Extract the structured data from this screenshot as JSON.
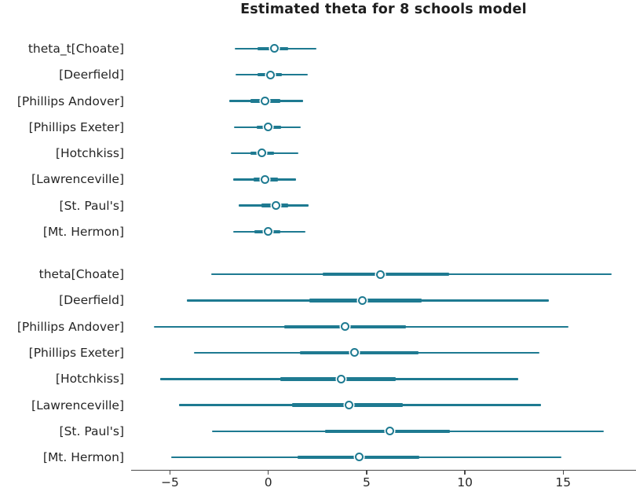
{
  "title": "Estimated theta for 8 schools model",
  "chart_data": {
    "type": "forest",
    "title": "Estimated theta for 8 schools model",
    "xlabel": "",
    "ylabel": "",
    "xlim": [
      -7,
      18.7
    ],
    "legend": "none",
    "grid": false,
    "accent_color": "#1e7a91",
    "marker_style": "open-circle",
    "x_ticks": {
      "values": [
        -5,
        0,
        5,
        10,
        15
      ],
      "labels": [
        "−5",
        "0",
        "5",
        "10",
        "15"
      ]
    },
    "groups": [
      {
        "name": "theta_t",
        "rows": [
          {
            "label": "theta_t[Choate]",
            "interval": [
              -1.7,
              2.45
            ],
            "thick": [
              -0.55,
              1.0
            ],
            "point": 0.3
          },
          {
            "label": "[Deerfield]",
            "interval": [
              -1.65,
              2.0
            ],
            "thick": [
              -0.55,
              0.7
            ],
            "point": 0.1
          },
          {
            "label": "[Phillips Andover]",
            "interval": [
              -2.0,
              1.75
            ],
            "thick": [
              -0.9,
              0.6
            ],
            "point": -0.15
          },
          {
            "label": "[Phillips Exeter]",
            "interval": [
              -1.75,
              1.65
            ],
            "thick": [
              -0.6,
              0.65
            ],
            "point": 0.0
          },
          {
            "label": "[Hotchkiss]",
            "interval": [
              -1.9,
              1.55
            ],
            "thick": [
              -0.9,
              0.3
            ],
            "point": -0.3
          },
          {
            "label": "[Lawrenceville]",
            "interval": [
              -1.8,
              1.4
            ],
            "thick": [
              -0.75,
              0.5
            ],
            "point": -0.15
          },
          {
            "label": "[St. Paul's]",
            "interval": [
              -1.5,
              2.05
            ],
            "thick": [
              -0.35,
              1.0
            ],
            "point": 0.4
          },
          {
            "label": "[Mt. Hermon]",
            "interval": [
              -1.8,
              1.9
            ],
            "thick": [
              -0.7,
              0.6
            ],
            "point": 0.0
          }
        ]
      },
      {
        "name": "theta",
        "rows": [
          {
            "label": "theta[Choate]",
            "interval": [
              -2.9,
              17.45
            ],
            "thick": [
              2.75,
              9.2
            ],
            "point": 5.7
          },
          {
            "label": "[Deerfield]",
            "interval": [
              -4.15,
              14.25
            ],
            "thick": [
              2.1,
              7.8
            ],
            "point": 4.8
          },
          {
            "label": "[Phillips Andover]",
            "interval": [
              -5.8,
              15.25
            ],
            "thick": [
              0.8,
              7.0
            ],
            "point": 3.9
          },
          {
            "label": "[Phillips Exeter]",
            "interval": [
              -3.8,
              13.8
            ],
            "thick": [
              1.6,
              7.65
            ],
            "point": 4.4
          },
          {
            "label": "[Hotchkiss]",
            "interval": [
              -5.5,
              12.7
            ],
            "thick": [
              0.6,
              6.5
            ],
            "point": 3.7
          },
          {
            "label": "[Lawrenceville]",
            "interval": [
              -4.55,
              13.85
            ],
            "thick": [
              1.2,
              6.85
            ],
            "point": 4.1
          },
          {
            "label": "[St. Paul's]",
            "interval": [
              -2.85,
              17.05
            ],
            "thick": [
              2.9,
              9.25
            ],
            "point": 6.2
          },
          {
            "label": "[Mt. Hermon]",
            "interval": [
              -4.95,
              14.9
            ],
            "thick": [
              1.5,
              7.7
            ],
            "point": 4.65
          }
        ]
      }
    ]
  }
}
